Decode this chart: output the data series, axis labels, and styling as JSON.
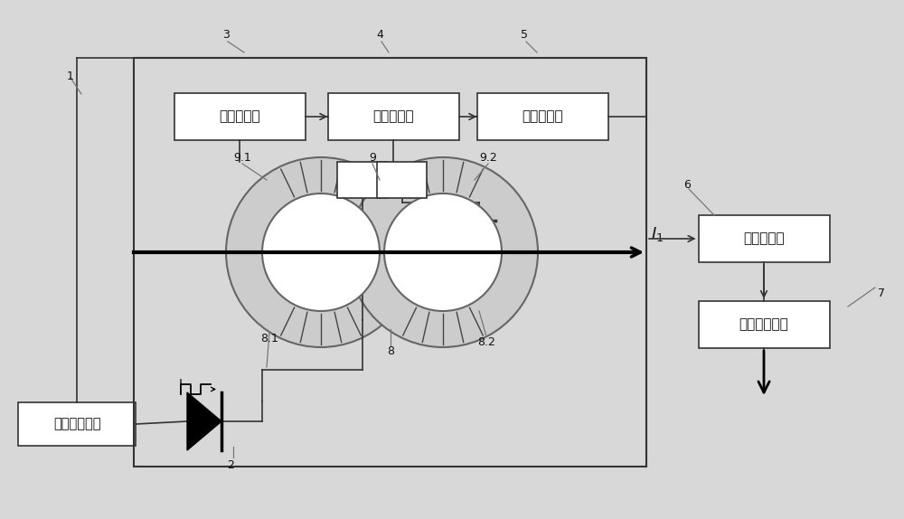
{
  "bg_color": "#d8d8d8",
  "box_color": "#ffffff",
  "box_edge": "#333333",
  "line_color": "#333333",
  "text_color": "#111111",
  "figsize": [
    10.0,
    5.74
  ],
  "dpi": 100,
  "labels": {
    "fangbo": "方波振荡电路",
    "bandtong": "带通滤波器",
    "yiyong": "仪用放大器",
    "xiangwei": "相敏检波器",
    "ditong": "低通滤波器",
    "zhiliu": "直流信号输出"
  }
}
